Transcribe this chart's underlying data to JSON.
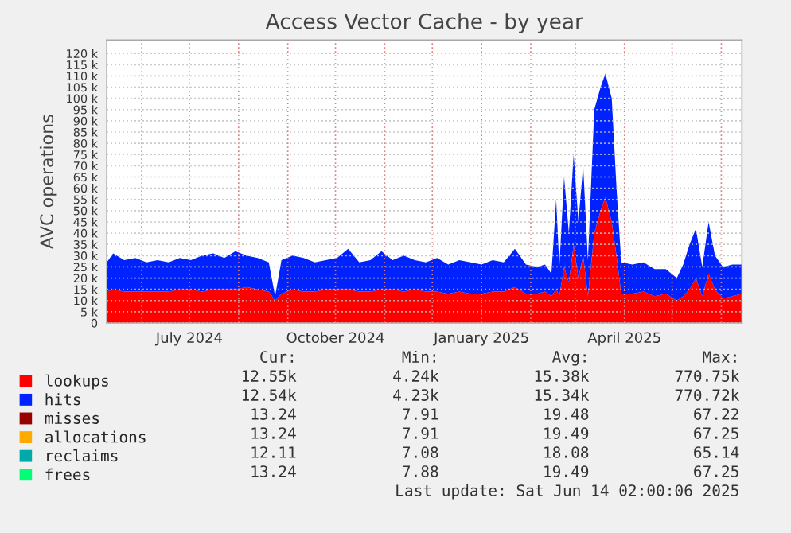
{
  "chart_data": {
    "type": "area",
    "stacked": true,
    "title": "Access Vector Cache - by year",
    "ylabel": "AVC operations",
    "x": [
      "2024-05-10",
      "2024-05-14",
      "2024-05-21",
      "2024-05-28",
      "2024-06-04",
      "2024-06-11",
      "2024-06-18",
      "2024-06-25",
      "2024-07-02",
      "2024-07-09",
      "2024-07-16",
      "2024-07-23",
      "2024-07-30",
      "2024-08-06",
      "2024-08-13",
      "2024-08-20",
      "2024-08-24",
      "2024-08-28",
      "2024-09-04",
      "2024-09-11",
      "2024-09-18",
      "2024-09-25",
      "2024-10-02",
      "2024-10-09",
      "2024-10-16",
      "2024-10-23",
      "2024-10-30",
      "2024-11-06",
      "2024-11-13",
      "2024-11-20",
      "2024-11-27",
      "2024-12-04",
      "2024-12-11",
      "2024-12-18",
      "2024-12-25",
      "2025-01-01",
      "2025-01-08",
      "2025-01-15",
      "2025-01-22",
      "2025-01-29",
      "2025-02-05",
      "2025-02-10",
      "2025-02-14",
      "2025-02-17",
      "2025-02-19",
      "2025-02-22",
      "2025-02-25",
      "2025-02-28",
      "2025-03-03",
      "2025-03-06",
      "2025-03-09",
      "2025-03-13",
      "2025-03-17",
      "2025-03-20",
      "2025-03-24",
      "2025-03-27",
      "2025-03-30",
      "2025-04-06",
      "2025-04-13",
      "2025-04-20",
      "2025-04-27",
      "2025-05-04",
      "2025-05-08",
      "2025-05-12",
      "2025-05-16",
      "2025-05-20",
      "2025-05-24",
      "2025-05-28",
      "2025-06-02",
      "2025-06-08",
      "2025-06-14"
    ],
    "series": [
      {
        "name": "lookups",
        "color": "#ff0000",
        "values": [
          14000,
          15000,
          14000,
          14000,
          14000,
          14000,
          14000,
          15000,
          15000,
          14000,
          15000,
          15000,
          15000,
          16000,
          15000,
          14000,
          10000,
          13000,
          15000,
          14000,
          14000,
          15000,
          15000,
          15000,
          14000,
          14000,
          15000,
          15000,
          14000,
          15000,
          14000,
          14000,
          13000,
          14000,
          13000,
          13000,
          14000,
          14000,
          16000,
          13000,
          13000,
          14000,
          12000,
          15000,
          12000,
          25000,
          18000,
          35000,
          20000,
          30000,
          12000,
          40000,
          50000,
          56000,
          45000,
          30000,
          13000,
          13000,
          14000,
          12000,
          13000,
          10000,
          12000,
          15000,
          20000,
          12000,
          22000,
          15000,
          11000,
          12000,
          13000
        ]
      },
      {
        "name": "hits",
        "color": "#0022ff",
        "values": [
          13000,
          16000,
          14000,
          15000,
          13000,
          14000,
          13000,
          14000,
          13000,
          16000,
          16000,
          14000,
          17000,
          14000,
          14000,
          13000,
          2000,
          15000,
          15000,
          15000,
          13000,
          13000,
          14000,
          18000,
          13000,
          14000,
          17000,
          13000,
          16000,
          13000,
          13000,
          15000,
          13000,
          14000,
          14000,
          13000,
          14000,
          13000,
          17000,
          13000,
          12000,
          12000,
          10000,
          40000,
          13000,
          40000,
          22000,
          40000,
          25000,
          40000,
          16000,
          55000,
          55000,
          55000,
          55000,
          30000,
          14000,
          13000,
          13000,
          12000,
          11000,
          10000,
          14000,
          20000,
          22000,
          13000,
          23000,
          15000,
          14000,
          14000,
          13000
        ]
      },
      {
        "name": "misses",
        "color": "#990000",
        "values": [
          null,
          null,
          null,
          null,
          null,
          null,
          null,
          null,
          null,
          null,
          null,
          null,
          null,
          null,
          null,
          null,
          null,
          null,
          null,
          null,
          null,
          null,
          null,
          null,
          null,
          null,
          null,
          null,
          null,
          null,
          null,
          null,
          null,
          null,
          null,
          null,
          null,
          null,
          null,
          null,
          null,
          null,
          null,
          null,
          null,
          null,
          null,
          null,
          null,
          null,
          null,
          null,
          null,
          null,
          null,
          null,
          null,
          null,
          null,
          null,
          null,
          null,
          null,
          null,
          null,
          null,
          null,
          null,
          null,
          null,
          null
        ]
      },
      {
        "name": "allocations",
        "color": "#ffaa00",
        "values": [
          null,
          null,
          null,
          null,
          null,
          null,
          null,
          null,
          null,
          null,
          null,
          null,
          null,
          null,
          null,
          null,
          null,
          null,
          null,
          null,
          null,
          null,
          null,
          null,
          null,
          null,
          null,
          null,
          null,
          null,
          null,
          null,
          null,
          null,
          null,
          null,
          null,
          null,
          null,
          null,
          null,
          null,
          null,
          null,
          null,
          null,
          null,
          null,
          null,
          null,
          null,
          null,
          null,
          null,
          null,
          null,
          null,
          null,
          null,
          null,
          null,
          null,
          null,
          null,
          null,
          null,
          null,
          null,
          null,
          null,
          null
        ]
      },
      {
        "name": "reclaims",
        "color": "#00aaaa",
        "values": [
          null,
          null,
          null,
          null,
          null,
          null,
          null,
          null,
          null,
          null,
          null,
          null,
          null,
          null,
          null,
          null,
          null,
          null,
          null,
          null,
          null,
          null,
          null,
          null,
          null,
          null,
          null,
          null,
          null,
          null,
          null,
          null,
          null,
          null,
          null,
          null,
          null,
          null,
          null,
          null,
          null,
          null,
          null,
          null,
          null,
          null,
          null,
          null,
          null,
          null,
          null,
          null,
          null,
          null,
          null,
          null,
          null,
          null,
          null,
          null,
          null,
          null,
          null,
          null,
          null,
          null,
          null,
          null,
          null,
          null,
          null
        ]
      },
      {
        "name": "frees",
        "color": "#00ff77",
        "values": [
          null,
          null,
          null,
          null,
          null,
          null,
          null,
          null,
          null,
          null,
          null,
          null,
          null,
          null,
          null,
          null,
          null,
          null,
          null,
          null,
          null,
          null,
          null,
          null,
          null,
          null,
          null,
          null,
          null,
          null,
          null,
          null,
          null,
          null,
          null,
          null,
          null,
          null,
          null,
          null,
          null,
          null,
          null,
          null,
          null,
          null,
          null,
          null,
          null,
          null,
          null,
          null,
          null,
          null,
          null,
          null,
          null,
          null,
          null,
          null,
          null,
          null,
          null,
          null,
          null,
          null,
          null,
          null,
          null,
          null,
          null
        ]
      }
    ],
    "xlim": [
      "2024-05-10",
      "2025-06-14"
    ],
    "xticks": [
      {
        "value": "2024-06-01",
        "label": null
      },
      {
        "value": "2024-07-01",
        "label": "July 2024"
      },
      {
        "value": "2024-08-01",
        "label": null
      },
      {
        "value": "2024-09-01",
        "label": null
      },
      {
        "value": "2024-10-01",
        "label": "October 2024"
      },
      {
        "value": "2024-11-01",
        "label": null
      },
      {
        "value": "2024-12-01",
        "label": null
      },
      {
        "value": "2025-01-01",
        "label": "January 2025"
      },
      {
        "value": "2025-02-01",
        "label": null
      },
      {
        "value": "2025-03-01",
        "label": null
      },
      {
        "value": "2025-04-01",
        "label": "April 2025"
      },
      {
        "value": "2025-05-01",
        "label": null
      },
      {
        "value": "2025-06-01",
        "label": null
      }
    ],
    "ylim": [
      0,
      126000
    ],
    "yticks": [
      0,
      {
        "value": 5000,
        "label": "5 k"
      },
      {
        "value": 10000,
        "label": "10 k"
      },
      {
        "value": 15000,
        "label": "15 k"
      },
      {
        "value": 20000,
        "label": "20 k"
      },
      {
        "value": 25000,
        "label": "25 k"
      },
      {
        "value": 30000,
        "label": "30 k"
      },
      {
        "value": 35000,
        "label": "35 k"
      },
      {
        "value": 40000,
        "label": "40 k"
      },
      {
        "value": 45000,
        "label": "45 k"
      },
      {
        "value": 50000,
        "label": "50 k"
      },
      {
        "value": 55000,
        "label": "55 k"
      },
      {
        "value": 60000,
        "label": "60 k"
      },
      {
        "value": 65000,
        "label": "65 k"
      },
      {
        "value": 70000,
        "label": "70 k"
      },
      {
        "value": 75000,
        "label": "75 k"
      },
      {
        "value": 80000,
        "label": "80 k"
      },
      {
        "value": 85000,
        "label": "85 k"
      },
      {
        "value": 90000,
        "label": "90 k"
      },
      {
        "value": 95000,
        "label": "95 k"
      },
      {
        "value": 100000,
        "label": "100 k"
      },
      {
        "value": 105000,
        "label": "105 k"
      },
      {
        "value": 110000,
        "label": "110 k"
      },
      {
        "value": 115000,
        "label": "115 k"
      },
      {
        "value": 120000,
        "label": "120 k"
      }
    ],
    "grid": true,
    "legend": "bottom",
    "annotations": [
      "Cur:",
      "Min:",
      "Avg:",
      "Max:",
      "12.55k",
      "4.24k",
      "15.38k",
      "770.75k",
      "12.54k",
      "4.23k",
      "15.34k",
      "770.72k",
      "13.24",
      "7.91",
      "19.48",
      "67.22",
      "13.24",
      "7.91",
      "19.49",
      "67.25",
      "12.11",
      "7.08",
      "18.08",
      "65.14",
      "13.24",
      "7.88",
      "19.49",
      "67.25",
      "Last update: Sat Jun 14 02:00:06 2025"
    ]
  }
}
